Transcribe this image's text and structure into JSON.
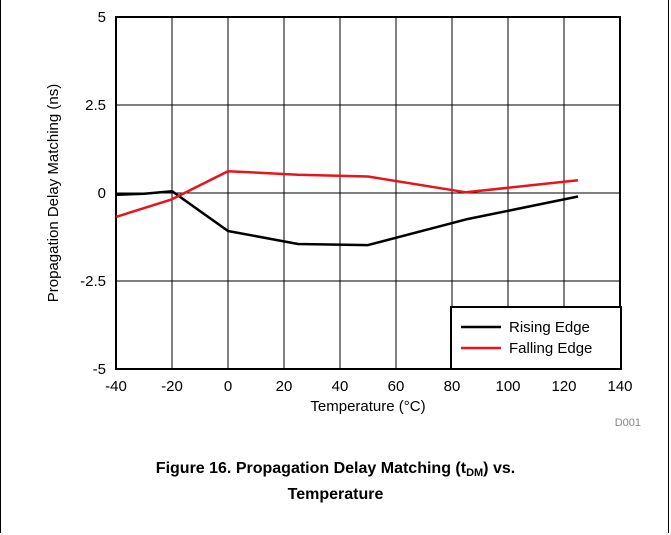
{
  "chart_data": {
    "type": "line",
    "xlabel": "Temperature (°C)",
    "ylabel": "Propagation Delay Matching (ns)",
    "xlim": [
      -40,
      140
    ],
    "ylim": [
      -5,
      5
    ],
    "xticks": [
      -40,
      -20,
      0,
      20,
      40,
      60,
      80,
      100,
      120,
      140
    ],
    "yticks": [
      -5,
      -2.5,
      0,
      2.5,
      5
    ],
    "ytick_labels": [
      "-5",
      "-2.5",
      "0",
      "2.5",
      "5"
    ],
    "grid": true,
    "legend_position": "bottom-right",
    "series": [
      {
        "name": "Rising Edge",
        "color": "#000000",
        "points": [
          [
            -40,
            -0.05
          ],
          [
            -30,
            -0.02
          ],
          [
            -20,
            0.05
          ],
          [
            0,
            -1.08
          ],
          [
            25,
            -1.45
          ],
          [
            50,
            -1.48
          ],
          [
            85,
            -0.75
          ],
          [
            125,
            -0.1
          ]
        ]
      },
      {
        "name": "Falling Edge",
        "color": "#e8141b",
        "points": [
          [
            -40,
            -0.68
          ],
          [
            -20,
            -0.18
          ],
          [
            0,
            0.62
          ],
          [
            25,
            0.52
          ],
          [
            50,
            0.47
          ],
          [
            85,
            0.02
          ],
          [
            125,
            0.36
          ]
        ]
      }
    ],
    "figure_code": "D001"
  },
  "caption": {
    "prefix": "Figure 16. Propagation Delay Matching (t",
    "sub": "DM",
    "suffix": ") vs.",
    "line2": "Temperature"
  }
}
